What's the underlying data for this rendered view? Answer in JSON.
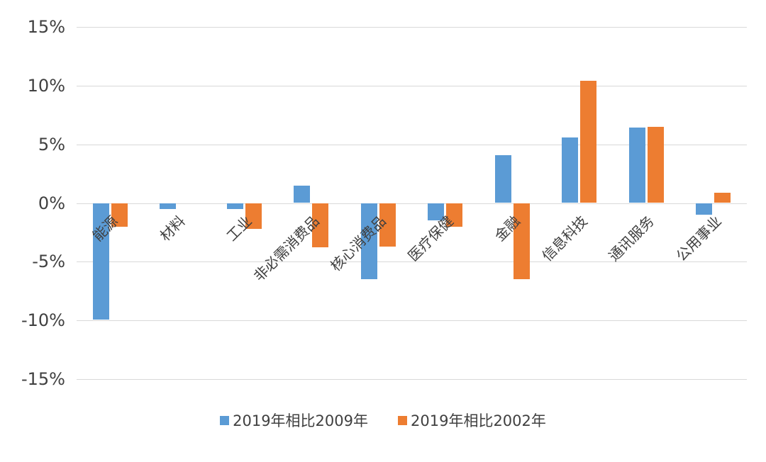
{
  "chart_data": {
    "type": "bar",
    "title": "",
    "xlabel": "",
    "ylabel": "",
    "categories": [
      "能源",
      "材料",
      "工业",
      "非必需消费品",
      "核心消费品",
      "医疗保健",
      "金融",
      "信息科技",
      "通讯服务",
      "公用事业"
    ],
    "series": [
      {
        "name": "2019年相比2009年",
        "color": "#5B9BD5",
        "values": [
          -9.9,
          -0.5,
          -0.5,
          1.5,
          -6.5,
          -1.5,
          4.1,
          5.6,
          6.4,
          -1.0
        ]
      },
      {
        "name": "2019年相比2002年",
        "color": "#ED7D31",
        "values": [
          -2.0,
          0,
          -2.2,
          -3.8,
          -3.7,
          -2.0,
          -6.5,
          10.4,
          6.5,
          0.9
        ]
      }
    ],
    "ylim": [
      -15,
      15
    ],
    "yticks": [
      15,
      10,
      5,
      0,
      -5,
      -10,
      -15
    ],
    "ytick_labels": [
      "15%",
      "10%",
      "5%",
      "0%",
      "-5%",
      "-10%",
      "-15%"
    ],
    "grid": true,
    "legend_position": "bottom",
    "gridline_color": "#d9d9d9"
  }
}
